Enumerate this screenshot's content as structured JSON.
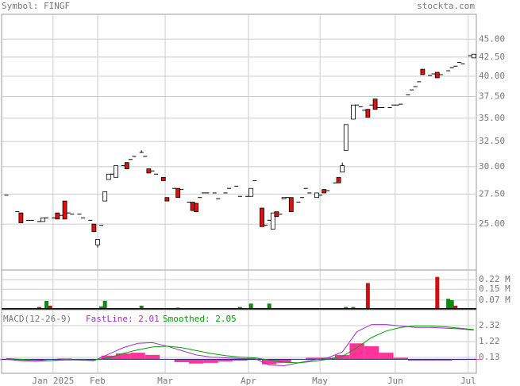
{
  "chart_data": [
    {
      "type": "candlestick",
      "title": "Symbol: FINGF",
      "source": "stockta.com",
      "log_scale": true,
      "grid": true,
      "xlim": [
        -1.3,
        128.7
      ],
      "ylim": [
        21.6,
        48.7
      ],
      "yticks": [
        {
          "value": 25,
          "label": "25.00"
        },
        {
          "value": 27.5,
          "label": "27.50"
        },
        {
          "value": 30,
          "label": "30.00"
        },
        {
          "value": 32.5,
          "label": "32.50"
        },
        {
          "value": 35,
          "label": "35.00"
        },
        {
          "value": 37.5,
          "label": "37.50"
        },
        {
          "value": 40,
          "label": "40.00"
        },
        {
          "value": 42.5,
          "label": "42.50"
        },
        {
          "value": 45,
          "label": "45.00"
        }
      ],
      "up_color": "#ffffff",
      "down_color": "#dd1111",
      "x": [
        0,
        3,
        4,
        6,
        7,
        9,
        10,
        11,
        13,
        14,
        15,
        16,
        17,
        18,
        20,
        21,
        23,
        24,
        25,
        26,
        27,
        28,
        29,
        30,
        32,
        33,
        34,
        35,
        37,
        38,
        39,
        40,
        41,
        43,
        44,
        46,
        47,
        48,
        50,
        51,
        52,
        53,
        54,
        55,
        57,
        58,
        60,
        61,
        63,
        64,
        66,
        67,
        68,
        70,
        71,
        72,
        73,
        74,
        75,
        76,
        77,
        78,
        80,
        81,
        82,
        83,
        85,
        86,
        87,
        88,
        90,
        91,
        92,
        93,
        95,
        96,
        97,
        98,
        99,
        100,
        101,
        102,
        103,
        105,
        106,
        107,
        108,
        110,
        111,
        112,
        113,
        114,
        116,
        117,
        118,
        119,
        121,
        122,
        123,
        124,
        125,
        127,
        128
      ],
      "open": [
        27.4,
        26.0,
        25.9,
        25.3,
        25.3,
        25.2,
        25.2,
        25.5,
        25.5,
        25.9,
        25.7,
        26.9,
        25.9,
        25.8,
        25.8,
        25.5,
        25.3,
        25.0,
        23.4,
        24.9,
        26.9,
        28.8,
        29.3,
        29.0,
        30.1,
        30.4,
        30.7,
        31.0,
        31.4,
        31.0,
        29.8,
        29.6,
        29.3,
        29.0,
        27.2,
        28.0,
        28.0,
        27.9,
        26.8,
        26.8,
        26.7,
        27.2,
        27.6,
        27.6,
        27.6,
        27.1,
        27.6,
        28.0,
        28.2,
        27.3,
        27.3,
        27.3,
        28.7,
        26.3,
        24.9,
        25.3,
        24.6,
        26.0,
        25.8,
        27.1,
        27.2,
        27.2,
        26.8,
        27.2,
        28.0,
        27.6,
        27.2,
        27.4,
        27.9,
        27.8,
        28.5,
        29.0,
        29.5,
        31.6,
        34.9,
        36.5,
        36.3,
        35.9,
        36.0,
        36.5,
        37.2,
        36.2,
        36.2,
        36.2,
        36.5,
        36.5,
        36.6,
        37.7,
        38.3,
        38.7,
        39.3,
        40.9,
        40.1,
        40.3,
        40.5,
        40.2,
        40.7,
        41.1,
        41.3,
        41.8,
        41.6,
        42.7,
        42.4
      ],
      "high": [
        27.4,
        26.0,
        25.9,
        25.3,
        25.3,
        25.2,
        25.5,
        25.5,
        25.5,
        25.9,
        25.7,
        26.9,
        25.9,
        25.8,
        25.8,
        25.5,
        25.3,
        25.0,
        23.8,
        24.9,
        27.7,
        29.3,
        29.3,
        30.1,
        30.1,
        30.4,
        30.7,
        31.0,
        31.6,
        31.0,
        29.8,
        29.6,
        29.3,
        29.0,
        27.2,
        28.0,
        28.0,
        27.9,
        26.8,
        26.8,
        26.7,
        27.2,
        27.6,
        27.6,
        27.6,
        27.1,
        27.6,
        28.0,
        28.2,
        27.3,
        27.3,
        28.0,
        28.7,
        26.3,
        24.9,
        25.3,
        25.9,
        26.0,
        25.8,
        27.2,
        27.2,
        27.2,
        26.8,
        27.2,
        28.0,
        27.6,
        27.6,
        27.4,
        27.9,
        27.8,
        28.5,
        29.0,
        30.4,
        34.3,
        36.5,
        36.5,
        36.3,
        35.9,
        36.0,
        36.5,
        37.2,
        36.2,
        36.2,
        36.2,
        36.5,
        36.5,
        36.6,
        37.7,
        38.3,
        38.7,
        39.3,
        40.9,
        40.1,
        40.3,
        40.5,
        40.2,
        40.7,
        41.1,
        41.3,
        41.8,
        41.6,
        42.7,
        42.9
      ],
      "low": [
        27.4,
        26.0,
        25.1,
        25.3,
        25.3,
        25.2,
        25.2,
        25.5,
        25.5,
        25.4,
        25.7,
        25.4,
        25.9,
        25.8,
        25.8,
        25.5,
        25.3,
        24.4,
        23.2,
        24.9,
        26.9,
        28.8,
        29.3,
        29.0,
        30.1,
        29.8,
        30.7,
        31.0,
        31.4,
        31.0,
        29.4,
        29.6,
        29.3,
        28.7,
        26.9,
        28.0,
        27.2,
        27.9,
        26.8,
        26.1,
        26.0,
        27.2,
        27.6,
        27.6,
        27.6,
        27.1,
        27.6,
        28.0,
        28.2,
        27.3,
        27.3,
        27.3,
        28.7,
        24.8,
        24.9,
        25.3,
        24.6,
        25.6,
        25.8,
        27.1,
        27.2,
        26.0,
        26.8,
        27.2,
        28.0,
        27.6,
        27.2,
        27.4,
        27.6,
        27.8,
        28.5,
        28.5,
        29.5,
        31.6,
        34.9,
        36.5,
        36.3,
        35.9,
        35.1,
        36.5,
        36.0,
        36.2,
        36.2,
        36.2,
        36.5,
        36.5,
        36.6,
        37.7,
        38.3,
        38.7,
        39.3,
        40.2,
        40.1,
        40.3,
        39.8,
        40.2,
        40.7,
        41.1,
        41.3,
        41.8,
        41.6,
        42.7,
        42.4
      ],
      "close": [
        27.4,
        26.0,
        25.1,
        25.3,
        25.3,
        25.2,
        25.5,
        25.5,
        25.5,
        25.4,
        25.7,
        25.4,
        25.9,
        25.8,
        25.8,
        25.5,
        25.3,
        24.4,
        23.8,
        24.9,
        27.7,
        29.3,
        29.3,
        30.1,
        30.1,
        29.8,
        30.7,
        31.0,
        31.4,
        31.0,
        29.4,
        29.6,
        29.3,
        28.7,
        26.9,
        28.0,
        27.2,
        27.9,
        26.8,
        26.1,
        26.0,
        27.2,
        27.6,
        27.6,
        27.6,
        27.1,
        27.6,
        28.0,
        28.2,
        27.3,
        27.3,
        28.0,
        28.7,
        24.8,
        24.9,
        25.3,
        25.9,
        25.6,
        25.8,
        27.2,
        27.2,
        26.0,
        26.8,
        27.2,
        28.0,
        27.6,
        27.6,
        27.4,
        27.6,
        27.8,
        28.5,
        28.5,
        30.1,
        34.3,
        36.5,
        36.5,
        36.3,
        35.9,
        35.1,
        36.5,
        36.0,
        36.2,
        36.2,
        36.2,
        36.5,
        36.5,
        36.6,
        37.7,
        38.3,
        38.7,
        39.3,
        40.2,
        40.1,
        40.3,
        39.8,
        40.2,
        40.7,
        41.1,
        41.3,
        41.8,
        41.6,
        42.7,
        42.9
      ]
    },
    {
      "type": "bar",
      "xlim": [
        -1.3,
        128.7
      ],
      "ylim": [
        0,
        0.29
      ],
      "yticks": [
        {
          "value": 0.07,
          "label": "0.07 M"
        },
        {
          "value": 0.15,
          "label": "0.15 M"
        },
        {
          "value": 0.22,
          "label": "0.22 M"
        }
      ],
      "series": [
        {
          "color": "#118811",
          "x": [
            11,
            26,
            27,
            37,
            64,
            67,
            72,
            93,
            95,
            121,
            122
          ],
          "values": [
            0.064,
            0.025,
            0.065,
            0.03,
            0.02,
            0.045,
            0.045,
            0.02,
            0.02,
            0.08,
            0.07
          ]
        },
        {
          "color": "#cc1111",
          "x": [
            1,
            7,
            9,
            12,
            47,
            60,
            99,
            114,
            118,
            123
          ],
          "values": [
            0.01,
            0.01,
            0.02,
            0.03,
            0.015,
            0.01,
            0.195,
            0.01,
            0.24,
            0.03
          ]
        }
      ]
    },
    {
      "type": "line",
      "title": "MACD(12-26-9)",
      "xlim": [
        -1.3,
        128.7
      ],
      "ylim": [
        -0.97,
        3.42
      ],
      "yticks": [
        0.13,
        1.22,
        2.32
      ],
      "xticks": [
        {
          "value": 12.8,
          "label": "Jan 2025"
        },
        {
          "value": 25,
          "label": "Feb"
        },
        {
          "value": 43.5,
          "label": "Mar"
        },
        {
          "value": 66.3,
          "label": "Apr"
        },
        {
          "value": 85.9,
          "label": "May"
        },
        {
          "value": 106.5,
          "label": "Jun"
        },
        {
          "value": 126.5,
          "label": "Jul"
        }
      ],
      "x": [
        0,
        4,
        8,
        12,
        16,
        20,
        24,
        28,
        32,
        36,
        40,
        44,
        48,
        52,
        56,
        60,
        64,
        68,
        72,
        76,
        80,
        84,
        88,
        92,
        96,
        100,
        104,
        108,
        112,
        116,
        120,
        124,
        128
      ],
      "series": [
        {
          "name": "FastLine: 2.01",
          "color": "#9933cc",
          "values": [
            0,
            -0.1,
            -0.15,
            -0.1,
            0,
            -0.05,
            -0.1,
            0.35,
            0.8,
            1.1,
            1.15,
            0.9,
            0.6,
            0.3,
            0.15,
            0.1,
            0.05,
            0.05,
            -0.4,
            -0.45,
            -0.25,
            -0.05,
            0.1,
            0.5,
            1.9,
            2.4,
            2.4,
            2.3,
            2.2,
            2.2,
            2.15,
            2.1,
            2.01
          ]
        },
        {
          "name": "Smoothed: 2.05",
          "color": "#00a000",
          "values": [
            0.05,
            0,
            -0.05,
            -0.1,
            -0.05,
            -0.05,
            -0.05,
            0.1,
            0.4,
            0.65,
            0.85,
            0.9,
            0.8,
            0.6,
            0.4,
            0.25,
            0.15,
            0.1,
            -0.05,
            -0.2,
            -0.25,
            -0.15,
            0,
            0.2,
            0.8,
            1.5,
            1.95,
            2.2,
            2.3,
            2.3,
            2.25,
            2.15,
            2.05
          ]
        }
      ],
      "histogram": {
        "color": "#ff3399",
        "values": [
          -0.05,
          -0.1,
          -0.1,
          0,
          0.05,
          0,
          -0.05,
          0.25,
          0.4,
          0.45,
          0.3,
          0,
          -0.2,
          -0.3,
          -0.25,
          -0.15,
          -0.1,
          -0.05,
          -0.35,
          -0.25,
          0,
          0.1,
          0.1,
          0.3,
          1.1,
          0.9,
          0.45,
          0.1,
          -0.1,
          -0.1,
          -0.1,
          -0.05,
          -0.04
        ]
      }
    }
  ]
}
